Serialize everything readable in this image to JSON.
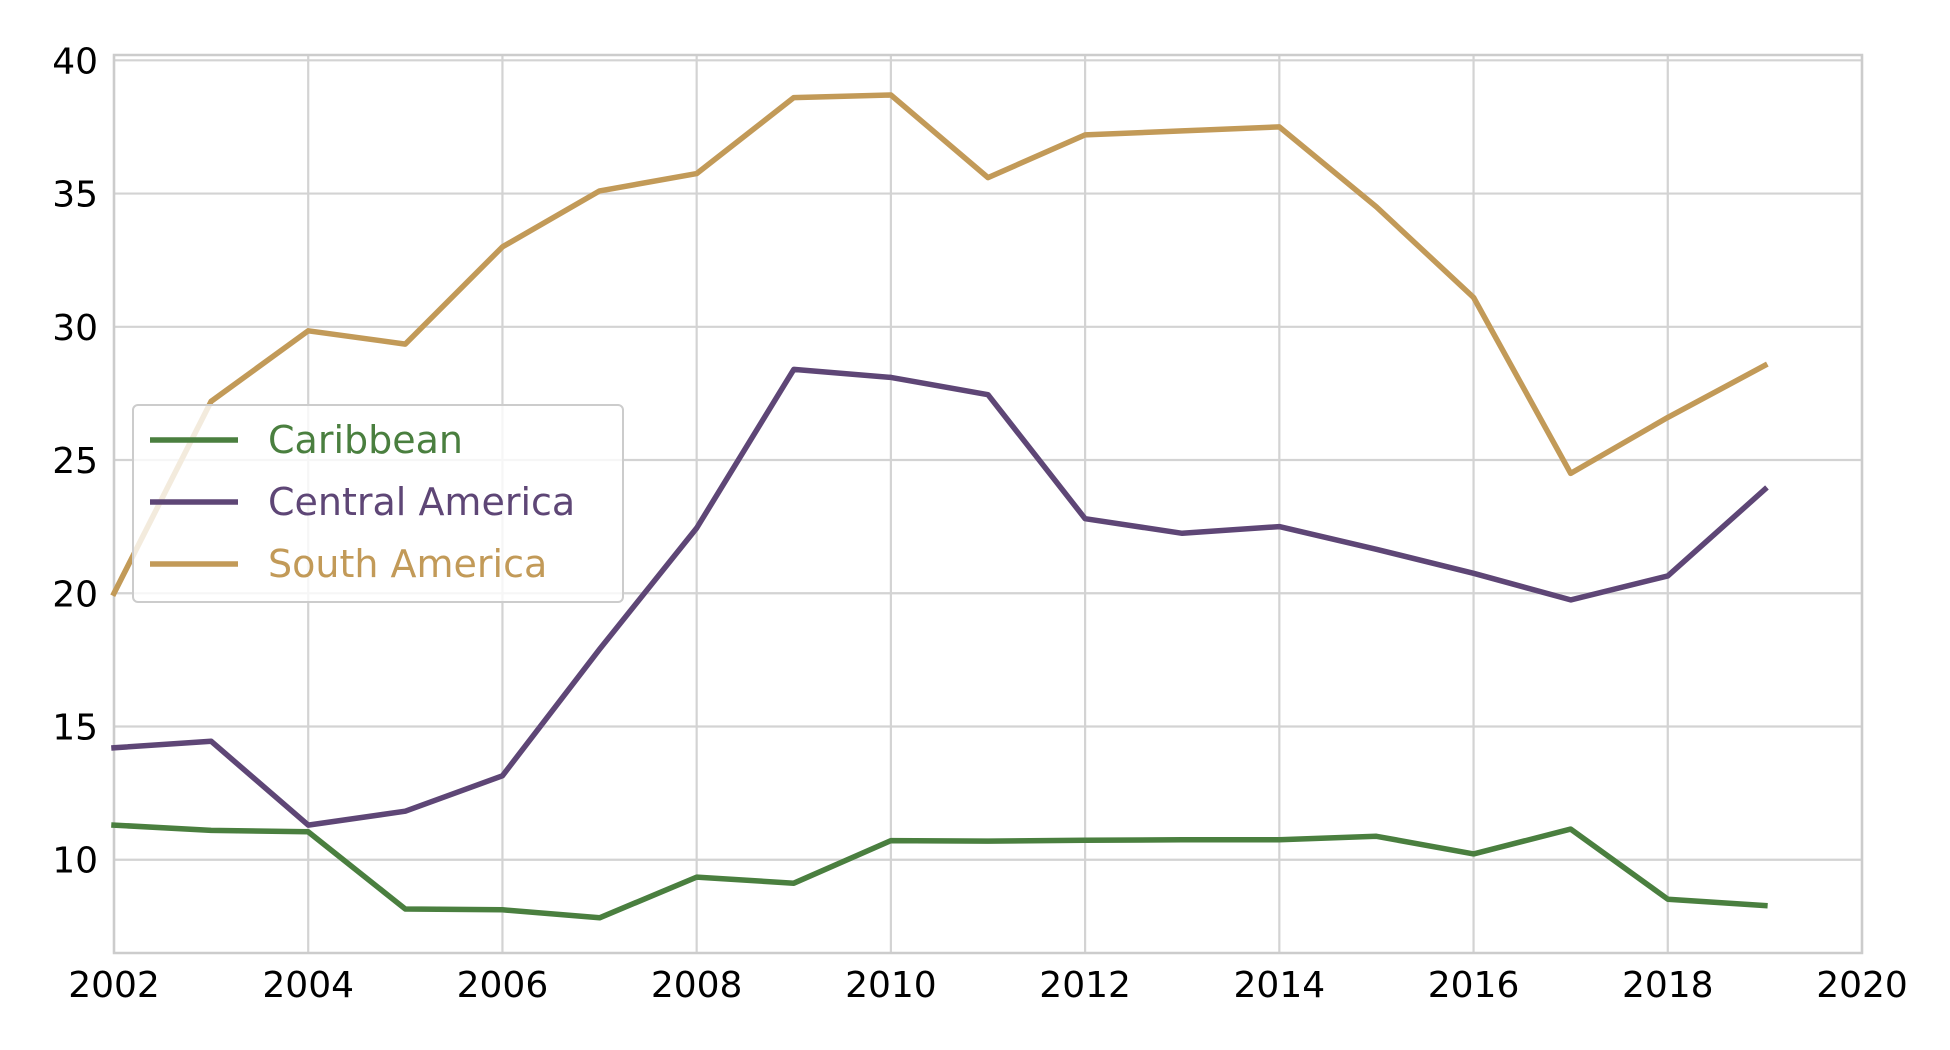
{
  "chart_data": {
    "type": "line",
    "title": "",
    "xlabel": "",
    "ylabel": "",
    "xlim": [
      2002,
      2020
    ],
    "ylim": [
      6.5,
      40.2
    ],
    "x_ticks": [
      2002,
      2004,
      2006,
      2008,
      2010,
      2012,
      2014,
      2016,
      2018,
      2020
    ],
    "y_ticks": [
      10,
      15,
      20,
      25,
      30,
      35,
      40
    ],
    "grid": true,
    "legend_position": "center-left",
    "x": [
      2002,
      2003,
      2004,
      2005,
      2006,
      2007,
      2008,
      2009,
      2010,
      2011,
      2012,
      2013,
      2014,
      2015,
      2016,
      2017,
      2018,
      2019
    ],
    "series": [
      {
        "name": "Caribbean",
        "color": "#4a7f3f",
        "values": [
          11.3,
          11.1,
          11.05,
          8.15,
          8.12,
          7.82,
          9.35,
          9.12,
          10.72,
          10.7,
          10.73,
          10.75,
          10.75,
          10.88,
          10.22,
          11.15,
          8.52,
          8.28
        ]
      },
      {
        "name": "Central America",
        "color": "#5e4676",
        "values": [
          14.2,
          14.45,
          11.3,
          11.82,
          13.15,
          17.9,
          22.45,
          28.4,
          28.1,
          27.45,
          22.8,
          22.25,
          22.5,
          21.65,
          20.75,
          19.75,
          20.65,
          23.9
        ]
      },
      {
        "name": "South America",
        "color": "#c29a58",
        "values": [
          20.0,
          27.2,
          29.85,
          29.35,
          33.0,
          35.1,
          35.75,
          38.6,
          38.7,
          35.6,
          37.2,
          37.35,
          37.5,
          34.5,
          31.1,
          24.5,
          26.6,
          28.55
        ]
      }
    ]
  }
}
